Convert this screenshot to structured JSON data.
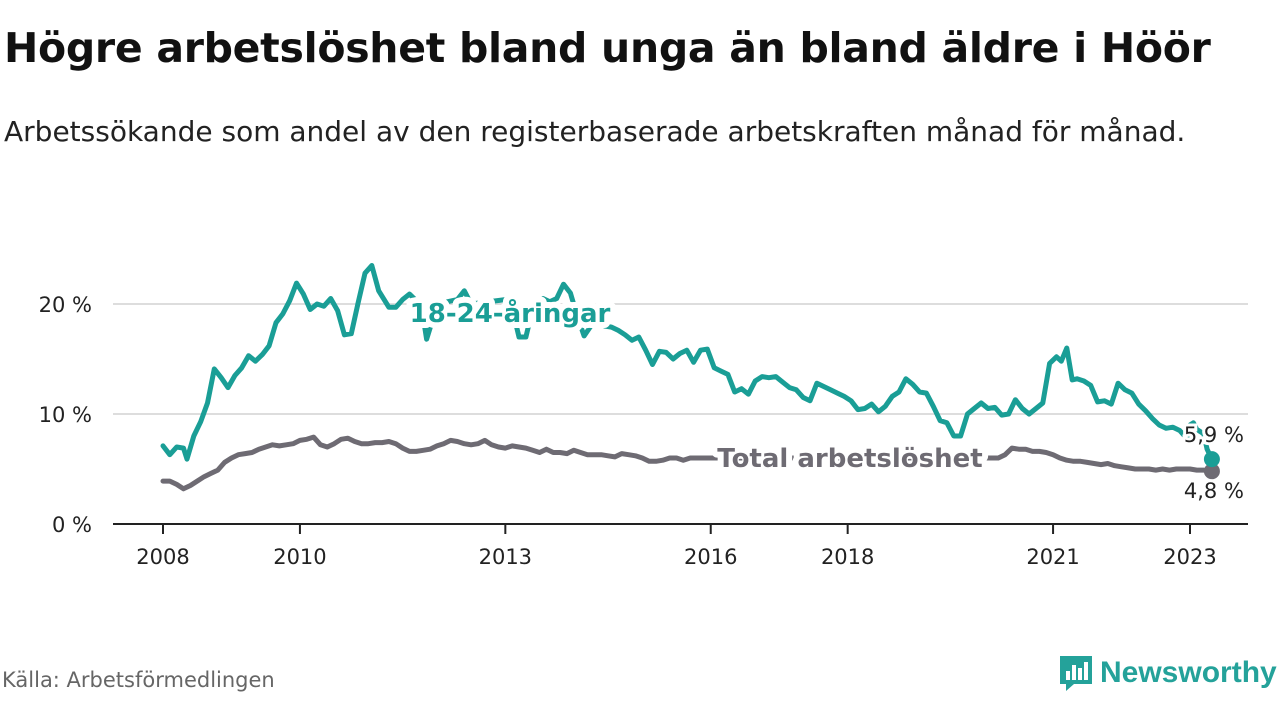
{
  "header": {
    "title": "Högre arbetslöshet bland unga än bland äldre i Höör",
    "subtitle": "Arbetssökande som andel av den registerbaserade arbetskraften månad för månad."
  },
  "footer": {
    "source": "Källa: Arbetsförmedlingen",
    "brand": "Newsworthy"
  },
  "colors": {
    "youth": "#1a9e96",
    "total": "#6e6b73",
    "grid": "#dddddd",
    "axis": "#222222"
  },
  "chart_data": {
    "type": "line",
    "title": "Högre arbetslöshet bland unga än bland äldre i Höör",
    "subtitle": "Arbetssökande som andel av den registerbaserade arbetskraften månad för månad.",
    "xlabel": "",
    "ylabel": "",
    "xlim": [
      2008.0,
      2023.5
    ],
    "ylim": [
      0,
      24
    ],
    "grid": true,
    "x_ticks": [
      {
        "value": 2008,
        "label": "2008"
      },
      {
        "value": 2010,
        "label": "2010"
      },
      {
        "value": 2013,
        "label": "2013"
      },
      {
        "value": 2016,
        "label": "2016"
      },
      {
        "value": 2018,
        "label": "2018"
      },
      {
        "value": 2021,
        "label": "2021"
      },
      {
        "value": 2023,
        "label": "2023"
      }
    ],
    "y_ticks": [
      {
        "value": 0,
        "label": "0 %"
      },
      {
        "value": 10,
        "label": "10 %"
      },
      {
        "value": 20,
        "label": "20 %"
      }
    ],
    "series": [
      {
        "name": "18-24-åringar",
        "color": "#1a9e96",
        "end_label": "5,9 %",
        "points": [
          [
            2008.0,
            7.1
          ],
          [
            2008.1,
            6.3
          ],
          [
            2008.2,
            7.0
          ],
          [
            2008.3,
            6.9
          ],
          [
            2008.35,
            5.9
          ],
          [
            2008.45,
            8.0
          ],
          [
            2008.55,
            9.3
          ],
          [
            2008.65,
            11.0
          ],
          [
            2008.75,
            14.1
          ],
          [
            2008.85,
            13.3
          ],
          [
            2008.95,
            12.4
          ],
          [
            2009.05,
            13.5
          ],
          [
            2009.15,
            14.2
          ],
          [
            2009.25,
            15.3
          ],
          [
            2009.35,
            14.8
          ],
          [
            2009.45,
            15.4
          ],
          [
            2009.55,
            16.2
          ],
          [
            2009.65,
            18.3
          ],
          [
            2009.75,
            19.1
          ],
          [
            2009.85,
            20.3
          ],
          [
            2009.95,
            21.9
          ],
          [
            2010.05,
            20.9
          ],
          [
            2010.15,
            19.5
          ],
          [
            2010.25,
            20.0
          ],
          [
            2010.35,
            19.8
          ],
          [
            2010.45,
            20.5
          ],
          [
            2010.55,
            19.4
          ],
          [
            2010.65,
            17.2
          ],
          [
            2010.75,
            17.3
          ],
          [
            2010.85,
            20.1
          ],
          [
            2010.95,
            22.8
          ],
          [
            2011.05,
            23.5
          ],
          [
            2011.15,
            21.2
          ],
          [
            2011.3,
            19.7
          ],
          [
            2011.4,
            19.7
          ],
          [
            2011.5,
            20.4
          ],
          [
            2011.6,
            20.9
          ],
          [
            2011.7,
            20.3
          ],
          [
            2011.8,
            18.8
          ],
          [
            2011.85,
            16.8
          ],
          [
            2011.95,
            18.8
          ],
          [
            2012.05,
            19.2
          ],
          [
            2012.15,
            20.2
          ],
          [
            2012.3,
            20.4
          ],
          [
            2012.4,
            21.2
          ],
          [
            2012.5,
            20.0
          ],
          [
            2013.0,
            20.4
          ],
          [
            2013.1,
            19.6
          ],
          [
            2013.2,
            17.0
          ],
          [
            2013.3,
            17.0
          ],
          [
            2013.4,
            19.6
          ],
          [
            2013.55,
            20.5
          ],
          [
            2013.65,
            20.2
          ],
          [
            2013.75,
            20.5
          ],
          [
            2013.85,
            21.8
          ],
          [
            2013.95,
            21.0
          ],
          [
            2014.05,
            18.9
          ],
          [
            2014.15,
            17.1
          ],
          [
            2014.25,
            18.0
          ],
          [
            2014.35,
            18.6
          ],
          [
            2014.45,
            18.0
          ],
          [
            2014.55,
            17.9
          ],
          [
            2014.65,
            17.6
          ],
          [
            2014.75,
            17.2
          ],
          [
            2014.85,
            16.7
          ],
          [
            2014.95,
            17.0
          ],
          [
            2015.05,
            15.8
          ],
          [
            2015.15,
            14.5
          ],
          [
            2015.25,
            15.7
          ],
          [
            2015.35,
            15.6
          ],
          [
            2015.45,
            15.0
          ],
          [
            2015.55,
            15.5
          ],
          [
            2015.65,
            15.8
          ],
          [
            2015.75,
            14.7
          ],
          [
            2015.85,
            15.8
          ],
          [
            2015.95,
            15.9
          ],
          [
            2016.05,
            14.2
          ],
          [
            2016.15,
            13.9
          ],
          [
            2016.25,
            13.6
          ],
          [
            2016.35,
            12.0
          ],
          [
            2016.45,
            12.3
          ],
          [
            2016.55,
            11.8
          ],
          [
            2016.65,
            13.0
          ],
          [
            2016.75,
            13.4
          ],
          [
            2016.85,
            13.3
          ],
          [
            2016.95,
            13.4
          ],
          [
            2017.05,
            12.9
          ],
          [
            2017.15,
            12.4
          ],
          [
            2017.25,
            12.2
          ],
          [
            2017.35,
            11.5
          ],
          [
            2017.45,
            11.2
          ],
          [
            2017.55,
            12.8
          ],
          [
            2017.65,
            12.5
          ],
          [
            2017.75,
            12.2
          ],
          [
            2017.85,
            11.9
          ],
          [
            2017.95,
            11.6
          ],
          [
            2018.05,
            11.2
          ],
          [
            2018.15,
            10.4
          ],
          [
            2018.25,
            10.5
          ],
          [
            2018.35,
            10.9
          ],
          [
            2018.45,
            10.2
          ],
          [
            2018.55,
            10.7
          ],
          [
            2018.65,
            11.6
          ],
          [
            2018.75,
            12.0
          ],
          [
            2018.85,
            13.2
          ],
          [
            2018.95,
            12.7
          ],
          [
            2019.05,
            12.0
          ],
          [
            2019.15,
            11.9
          ],
          [
            2019.25,
            10.7
          ],
          [
            2019.35,
            9.4
          ],
          [
            2019.45,
            9.2
          ],
          [
            2019.55,
            8.0
          ],
          [
            2019.65,
            8.0
          ],
          [
            2019.75,
            10.0
          ],
          [
            2019.85,
            10.5
          ],
          [
            2019.95,
            11.0
          ],
          [
            2020.05,
            10.5
          ],
          [
            2020.15,
            10.6
          ],
          [
            2020.25,
            9.9
          ],
          [
            2020.35,
            10.0
          ],
          [
            2020.45,
            11.3
          ],
          [
            2020.55,
            10.5
          ],
          [
            2020.65,
            10.0
          ],
          [
            2020.75,
            10.5
          ],
          [
            2020.85,
            11.0
          ],
          [
            2020.95,
            14.6
          ],
          [
            2021.05,
            15.2
          ],
          [
            2021.12,
            14.8
          ],
          [
            2021.2,
            16.0
          ],
          [
            2021.28,
            13.1
          ],
          [
            2021.35,
            13.2
          ],
          [
            2021.45,
            13.0
          ],
          [
            2021.55,
            12.6
          ],
          [
            2021.65,
            11.1
          ],
          [
            2021.75,
            11.2
          ],
          [
            2021.85,
            10.9
          ],
          [
            2021.95,
            12.8
          ],
          [
            2022.05,
            12.2
          ],
          [
            2022.15,
            11.9
          ],
          [
            2022.25,
            10.9
          ],
          [
            2022.35,
            10.3
          ],
          [
            2022.45,
            9.6
          ],
          [
            2022.55,
            9.0
          ],
          [
            2022.65,
            8.7
          ],
          [
            2022.75,
            8.8
          ],
          [
            2022.85,
            8.5
          ],
          [
            2022.95,
            7.8
          ],
          [
            2023.0,
            9.0
          ],
          [
            2023.05,
            9.2
          ],
          [
            2023.1,
            8.6
          ],
          [
            2023.2,
            8.2
          ],
          [
            2023.25,
            6.8
          ],
          [
            2023.32,
            5.9
          ]
        ]
      },
      {
        "name": "Total arbetslöshet",
        "color": "#6e6b73",
        "end_label": "4,8 %",
        "points": [
          [
            2008.0,
            3.9
          ],
          [
            2008.1,
            3.9
          ],
          [
            2008.2,
            3.6
          ],
          [
            2008.3,
            3.2
          ],
          [
            2008.4,
            3.5
          ],
          [
            2008.5,
            3.9
          ],
          [
            2008.6,
            4.3
          ],
          [
            2008.7,
            4.6
          ],
          [
            2008.8,
            4.9
          ],
          [
            2008.9,
            5.6
          ],
          [
            2009.0,
            6.0
          ],
          [
            2009.1,
            6.3
          ],
          [
            2009.2,
            6.4
          ],
          [
            2009.3,
            6.5
          ],
          [
            2009.4,
            6.8
          ],
          [
            2009.5,
            7.0
          ],
          [
            2009.6,
            7.2
          ],
          [
            2009.7,
            7.1
          ],
          [
            2009.8,
            7.2
          ],
          [
            2009.9,
            7.3
          ],
          [
            2010.0,
            7.6
          ],
          [
            2010.1,
            7.7
          ],
          [
            2010.2,
            7.9
          ],
          [
            2010.3,
            7.2
          ],
          [
            2010.4,
            7.0
          ],
          [
            2010.5,
            7.3
          ],
          [
            2010.6,
            7.7
          ],
          [
            2010.7,
            7.8
          ],
          [
            2010.8,
            7.5
          ],
          [
            2010.9,
            7.3
          ],
          [
            2011.0,
            7.3
          ],
          [
            2011.1,
            7.4
          ],
          [
            2011.2,
            7.4
          ],
          [
            2011.3,
            7.5
          ],
          [
            2011.4,
            7.3
          ],
          [
            2011.5,
            6.9
          ],
          [
            2011.6,
            6.6
          ],
          [
            2011.7,
            6.6
          ],
          [
            2011.8,
            6.7
          ],
          [
            2011.9,
            6.8
          ],
          [
            2012.0,
            7.1
          ],
          [
            2012.1,
            7.3
          ],
          [
            2012.2,
            7.6
          ],
          [
            2012.3,
            7.5
          ],
          [
            2012.4,
            7.3
          ],
          [
            2012.5,
            7.2
          ],
          [
            2012.6,
            7.3
          ],
          [
            2012.7,
            7.6
          ],
          [
            2012.8,
            7.2
          ],
          [
            2012.9,
            7.0
          ],
          [
            2013.0,
            6.9
          ],
          [
            2013.1,
            7.1
          ],
          [
            2013.2,
            7.0
          ],
          [
            2013.3,
            6.9
          ],
          [
            2013.4,
            6.7
          ],
          [
            2013.5,
            6.5
          ],
          [
            2013.6,
            6.8
          ],
          [
            2013.7,
            6.5
          ],
          [
            2013.8,
            6.5
          ],
          [
            2013.9,
            6.4
          ],
          [
            2014.0,
            6.7
          ],
          [
            2014.1,
            6.5
          ],
          [
            2014.2,
            6.3
          ],
          [
            2014.3,
            6.3
          ],
          [
            2014.4,
            6.3
          ],
          [
            2014.5,
            6.2
          ],
          [
            2014.6,
            6.1
          ],
          [
            2014.7,
            6.4
          ],
          [
            2014.8,
            6.3
          ],
          [
            2014.9,
            6.2
          ],
          [
            2015.0,
            6.0
          ],
          [
            2015.1,
            5.7
          ],
          [
            2015.2,
            5.7
          ],
          [
            2015.3,
            5.8
          ],
          [
            2015.4,
            6.0
          ],
          [
            2015.5,
            6.0
          ],
          [
            2015.6,
            5.8
          ],
          [
            2015.7,
            6.0
          ],
          [
            2020.2,
            6.0
          ],
          [
            2020.3,
            6.3
          ],
          [
            2020.4,
            6.9
          ],
          [
            2020.5,
            6.8
          ],
          [
            2020.6,
            6.8
          ],
          [
            2020.7,
            6.6
          ],
          [
            2020.8,
            6.6
          ],
          [
            2020.9,
            6.5
          ],
          [
            2021.0,
            6.3
          ],
          [
            2021.1,
            6.0
          ],
          [
            2021.2,
            5.8
          ],
          [
            2021.3,
            5.7
          ],
          [
            2021.4,
            5.7
          ],
          [
            2021.5,
            5.6
          ],
          [
            2021.6,
            5.5
          ],
          [
            2021.7,
            5.4
          ],
          [
            2021.8,
            5.5
          ],
          [
            2021.9,
            5.3
          ],
          [
            2022.0,
            5.2
          ],
          [
            2022.1,
            5.1
          ],
          [
            2022.2,
            5.0
          ],
          [
            2022.3,
            5.0
          ],
          [
            2022.4,
            5.0
          ],
          [
            2022.5,
            4.9
          ],
          [
            2022.6,
            5.0
          ],
          [
            2022.7,
            4.9
          ],
          [
            2022.8,
            5.0
          ],
          [
            2022.9,
            5.0
          ],
          [
            2023.0,
            5.0
          ],
          [
            2023.1,
            4.9
          ],
          [
            2023.2,
            4.9
          ],
          [
            2023.32,
            4.8
          ]
        ]
      }
    ]
  }
}
